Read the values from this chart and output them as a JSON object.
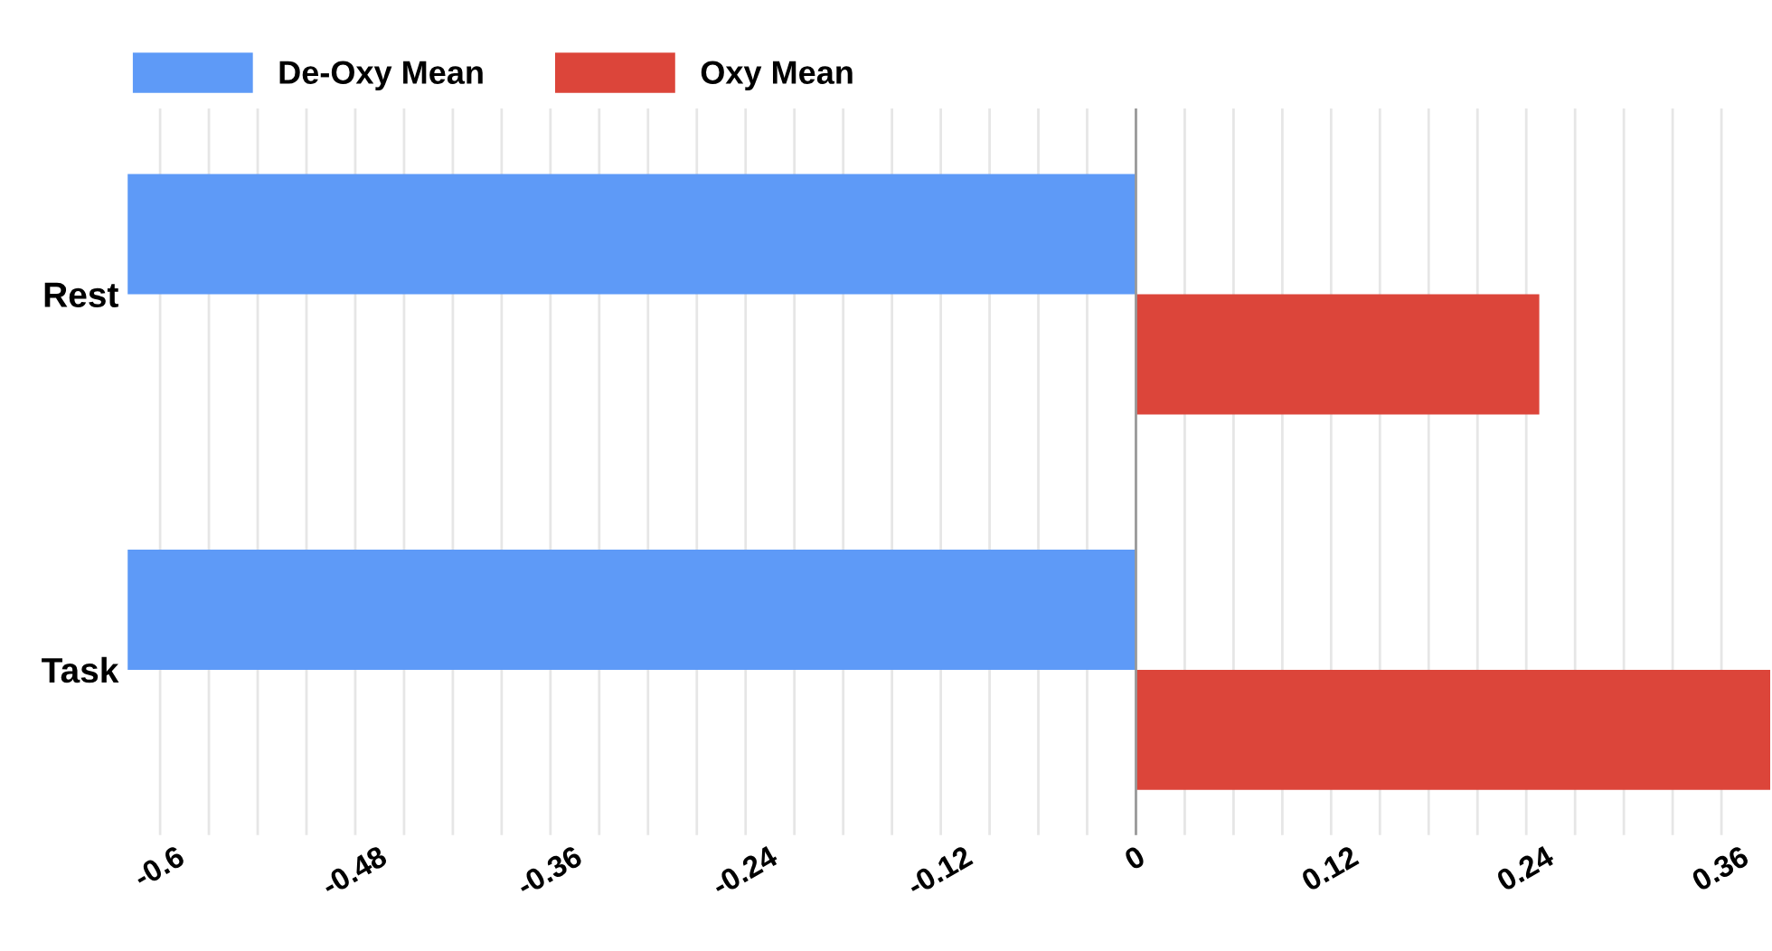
{
  "chart_data": {
    "type": "bar",
    "orientation": "horizontal",
    "categories": [
      "Rest",
      "Task"
    ],
    "series": [
      {
        "name": "De-Oxy Mean",
        "color": "#5e9af7",
        "values": [
          -0.62,
          -0.62
        ]
      },
      {
        "name": "Oxy Mean",
        "color": "#dc453a",
        "values": [
          0.248,
          0.39
        ]
      }
    ],
    "xlim": [
      -0.62,
      0.39
    ],
    "xticks": [
      -0.6,
      {
        "value": -0.57,
        "label": null
      },
      {
        "value": -0.54,
        "label": null
      },
      {
        "value": -0.51,
        "label": null
      },
      -0.48,
      {
        "value": -0.45,
        "label": null
      },
      {
        "value": -0.42,
        "label": null
      },
      {
        "value": -0.39,
        "label": null
      },
      -0.36,
      {
        "value": -0.33,
        "label": null
      },
      {
        "value": -0.3,
        "label": null
      },
      {
        "value": -0.27,
        "label": null
      },
      -0.24,
      {
        "value": -0.21,
        "label": null
      },
      {
        "value": -0.18,
        "label": null
      },
      {
        "value": -0.15,
        "label": null
      },
      -0.12,
      {
        "value": -0.09,
        "label": null
      },
      {
        "value": -0.06,
        "label": null
      },
      {
        "value": -0.03,
        "label": null
      },
      0,
      {
        "value": 0.03,
        "label": null
      },
      {
        "value": 0.06,
        "label": null
      },
      {
        "value": 0.09,
        "label": null
      },
      0.12,
      {
        "value": 0.15,
        "label": null
      },
      {
        "value": 0.18,
        "label": null
      },
      {
        "value": 0.21,
        "label": null
      },
      0.24,
      {
        "value": 0.27,
        "label": null
      },
      {
        "value": 0.3,
        "label": null
      },
      {
        "value": 0.33,
        "label": null
      },
      0.36
    ],
    "grid": "x",
    "legend": "top left"
  }
}
